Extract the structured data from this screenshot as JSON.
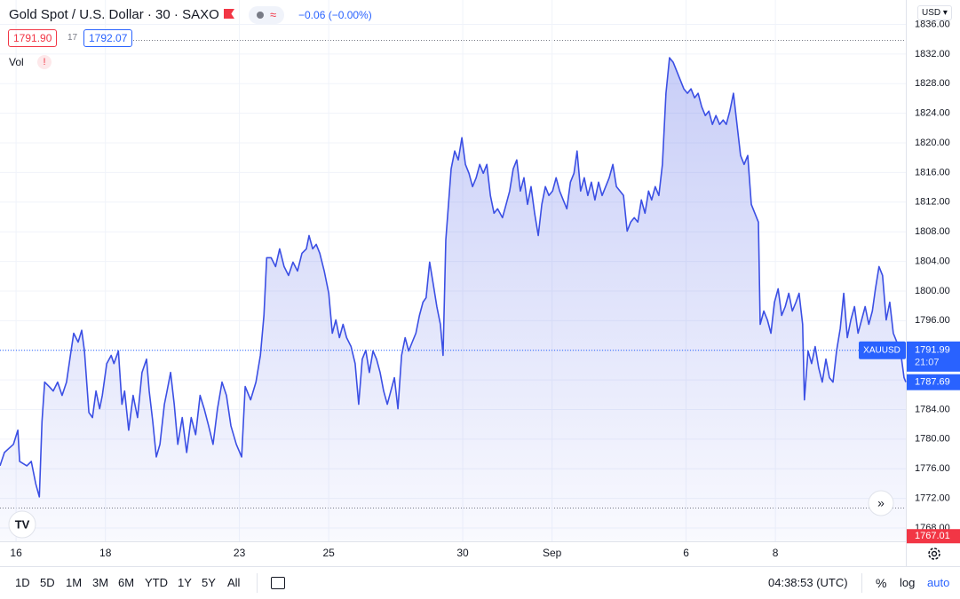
{
  "header": {
    "title": "Gold Spot / U.S. Dollar · 30 · SAXO",
    "change": "−0.06 (−0.00%)",
    "bid": "1791.90",
    "spread": "17",
    "ask": "1792.07",
    "volume_label": "Vol"
  },
  "currency": "USD",
  "chart_data": {
    "type": "area",
    "color": "#3b4fe4",
    "grid": true,
    "x": [
      -0.36,
      -0.26,
      -0.06,
      0.04,
      0.08,
      0.24,
      0.34,
      0.44,
      0.52,
      0.58,
      0.64,
      0.74,
      0.83,
      0.93,
      1.03,
      1.13,
      1.23,
      1.29,
      1.39,
      1.47,
      1.53,
      1.63,
      1.71,
      1.79,
      1.87,
      1.93,
      2.03,
      2.13,
      2.19,
      2.29,
      2.37,
      2.43,
      2.52,
      2.62,
      2.72,
      2.82,
      2.92,
      2.98,
      3.06,
      3.14,
      3.22,
      3.32,
      3.38,
      3.46,
      3.54,
      3.62,
      3.72,
      3.82,
      3.92,
      4.02,
      4.12,
      4.21,
      4.31,
      4.41,
      4.51,
      4.61,
      4.71,
      4.81,
      4.93,
      5.05,
      5.13,
      5.25,
      5.37,
      5.47,
      5.55,
      5.61,
      5.71,
      5.81,
      5.9,
      6.0,
      6.1,
      6.2,
      6.3,
      6.4,
      6.5,
      6.56,
      6.64,
      6.72,
      6.8,
      6.9,
      7.0,
      7.08,
      7.16,
      7.24,
      7.32,
      7.4,
      7.5,
      7.59,
      7.67,
      7.75,
      7.83,
      7.91,
      7.99,
      8.07,
      8.15,
      8.23,
      8.31,
      8.39,
      8.47,
      8.55,
      8.63,
      8.71,
      8.79,
      8.87,
      8.95,
      9.03,
      9.11,
      9.18,
      9.26,
      9.34,
      9.42,
      9.5,
      9.56,
      9.62,
      9.68,
      9.74,
      9.82,
      9.9,
      9.98,
      10.06,
      10.14,
      10.22,
      10.3,
      10.38,
      10.46,
      10.54,
      10.62,
      10.7,
      10.78,
      10.89,
      10.97,
      11.05,
      11.13,
      11.21,
      11.29,
      11.37,
      11.45,
      11.53,
      11.61,
      11.69,
      11.77,
      11.85,
      11.93,
      12.01,
      12.09,
      12.17,
      12.25,
      12.33,
      12.41,
      12.49,
      12.56,
      12.64,
      12.72,
      12.8,
      12.88,
      12.96,
      13.04,
      13.12,
      13.2,
      13.28,
      13.36,
      13.44,
      13.52,
      13.6,
      13.68,
      13.76,
      13.84,
      13.92,
      14.0,
      14.08,
      14.16,
      14.23,
      14.31,
      14.39,
      14.47,
      14.55,
      14.63,
      14.71,
      14.79,
      14.87,
      14.95,
      15.03,
      15.11,
      15.19,
      15.27,
      15.35,
      15.43,
      15.51,
      15.59,
      15.67,
      15.75,
      15.83,
      15.9,
      15.98,
      16.06,
      16.14,
      16.22,
      16.3,
      16.38,
      16.46,
      16.54,
      16.62,
      16.66,
      16.74,
      16.82,
      16.9,
      16.98,
      17.06,
      17.14,
      17.22,
      17.3,
      17.38,
      17.46,
      17.53,
      17.61,
      17.65,
      17.73,
      17.81,
      17.89,
      17.97,
      18.05,
      18.13,
      18.21,
      18.29,
      18.37,
      18.45,
      18.53,
      18.61,
      18.69,
      18.77,
      18.85,
      18.93,
      19.01,
      19.09,
      19.17,
      19.24,
      19.32,
      19.4,
      19.48,
      19.56,
      19.64,
      19.72,
      19.8,
      19.88,
      19.92
    ],
    "values": [
      1776.4,
      1778.2,
      1779.3,
      1781.2,
      1777.0,
      1776.4,
      1777.0,
      1774.0,
      1772.2,
      1782.4,
      1787.7,
      1787.1,
      1786.5,
      1787.7,
      1785.9,
      1787.7,
      1791.9,
      1794.3,
      1793.1,
      1794.7,
      1791.9,
      1783.6,
      1782.9,
      1786.5,
      1784.1,
      1785.9,
      1790.2,
      1791.3,
      1790.2,
      1791.9,
      1784.7,
      1786.5,
      1781.2,
      1785.9,
      1782.9,
      1789.0,
      1790.8,
      1786.5,
      1782.4,
      1777.6,
      1779.3,
      1784.7,
      1786.5,
      1789.0,
      1784.7,
      1779.3,
      1782.9,
      1778.2,
      1782.9,
      1780.6,
      1785.9,
      1784.1,
      1781.8,
      1779.3,
      1784.1,
      1787.7,
      1785.9,
      1781.8,
      1779.3,
      1777.6,
      1787.1,
      1785.3,
      1787.7,
      1791.3,
      1796.7,
      1804.5,
      1804.5,
      1803.3,
      1805.7,
      1803.3,
      1802.1,
      1803.9,
      1802.7,
      1805.1,
      1805.7,
      1807.5,
      1805.7,
      1806.3,
      1805.1,
      1802.7,
      1799.7,
      1794.3,
      1796.1,
      1793.7,
      1795.5,
      1793.7,
      1792.5,
      1790.2,
      1784.7,
      1790.8,
      1792.0,
      1789.0,
      1791.9,
      1790.8,
      1789.0,
      1786.5,
      1784.7,
      1786.5,
      1788.3,
      1784.1,
      1791.3,
      1793.7,
      1791.9,
      1793.1,
      1794.3,
      1796.7,
      1798.5,
      1799.1,
      1803.9,
      1800.9,
      1797.9,
      1795.5,
      1791.3,
      1806.9,
      1811.7,
      1816.5,
      1818.9,
      1817.7,
      1820.7,
      1817.1,
      1815.9,
      1814.1,
      1815.3,
      1817.1,
      1815.9,
      1817.1,
      1812.9,
      1810.5,
      1811.1,
      1809.9,
      1811.7,
      1813.5,
      1816.5,
      1817.7,
      1813.5,
      1815.3,
      1811.7,
      1814.1,
      1810.5,
      1807.5,
      1811.7,
      1814.1,
      1812.9,
      1813.5,
      1815.3,
      1813.5,
      1812.3,
      1811.1,
      1814.7,
      1815.9,
      1818.9,
      1813.5,
      1815.3,
      1812.9,
      1814.7,
      1812.3,
      1814.7,
      1812.9,
      1814.1,
      1815.3,
      1817.1,
      1814.1,
      1813.5,
      1812.9,
      1808.1,
      1809.3,
      1809.9,
      1809.3,
      1812.3,
      1810.5,
      1813.5,
      1812.3,
      1814.1,
      1812.9,
      1817.1,
      1826.7,
      1831.5,
      1830.9,
      1829.7,
      1828.5,
      1827.3,
      1826.7,
      1827.3,
      1826.1,
      1826.7,
      1824.9,
      1823.7,
      1824.3,
      1822.5,
      1823.7,
      1822.5,
      1823.1,
      1822.5,
      1824.3,
      1826.7,
      1822.5,
      1818.3,
      1817.1,
      1818.3,
      1811.7,
      1810.5,
      1809.3,
      1795.5,
      1797.3,
      1796.1,
      1794.3,
      1798.5,
      1800.3,
      1796.7,
      1797.9,
      1799.7,
      1797.3,
      1798.5,
      1799.7,
      1795.5,
      1785.3,
      1791.9,
      1790.2,
      1792.5,
      1789.6,
      1787.7,
      1790.8,
      1788.3,
      1787.7,
      1791.9,
      1794.9,
      1799.7,
      1793.7,
      1796.1,
      1797.9,
      1794.3,
      1796.1,
      1797.9,
      1795.5,
      1797.3,
      1800.3,
      1803.3,
      1802.1,
      1796.1,
      1798.5,
      1794.3,
      1793.1,
      1791.9,
      1788.3,
      1787.7
    ],
    "xlim": [
      -0.36,
      19.92
    ],
    "xticks": [
      {
        "value": 0,
        "label": "16"
      },
      {
        "value": 2,
        "label": "18"
      },
      {
        "value": 5,
        "label": "23"
      },
      {
        "value": 7,
        "label": "25"
      },
      {
        "value": 10,
        "label": "30"
      },
      {
        "value": 12,
        "label": "Sep"
      },
      {
        "value": 15,
        "label": "6"
      },
      {
        "value": 17,
        "label": "8"
      }
    ],
    "ylim": [
      1766.2,
      1839.3
    ],
    "yticks": [
      {
        "value": 1768,
        "label": "1768.00"
      },
      {
        "value": 1772,
        "label": "1772.00"
      },
      {
        "value": 1776,
        "label": "1776.00"
      },
      {
        "value": 1780,
        "label": "1780.00"
      },
      {
        "value": 1784,
        "label": "1784.00"
      },
      {
        "value": 1788,
        "label": "1788.00"
      },
      {
        "value": 1792,
        "label": "1792.00"
      },
      {
        "value": 1796,
        "label": "1796.00"
      },
      {
        "value": 1800,
        "label": "1800.00"
      },
      {
        "value": 1804,
        "label": "1804.00"
      },
      {
        "value": 1808,
        "label": "1808.00"
      },
      {
        "value": 1812,
        "label": "1812.00"
      },
      {
        "value": 1816,
        "label": "1816.00"
      },
      {
        "value": 1820,
        "label": "1820.00"
      },
      {
        "value": 1824,
        "label": "1824.00"
      },
      {
        "value": 1828,
        "label": "1828.00"
      },
      {
        "value": 1832,
        "label": "1832.00"
      },
      {
        "value": 1836,
        "label": "1836.00"
      }
    ],
    "symbol_tag": "XAUUSD",
    "close_price": 1791.99,
    "countdown": "21:07",
    "last_value": 1787.69,
    "low_value": 1767.01
  },
  "toolbar": {
    "ranges": [
      "1D",
      "5D",
      "1M",
      "3M",
      "6M",
      "YTD",
      "1Y",
      "5Y",
      "All"
    ],
    "time": "04:38:53 (UTC)",
    "percent": "%",
    "log": "log",
    "auto": "auto"
  }
}
